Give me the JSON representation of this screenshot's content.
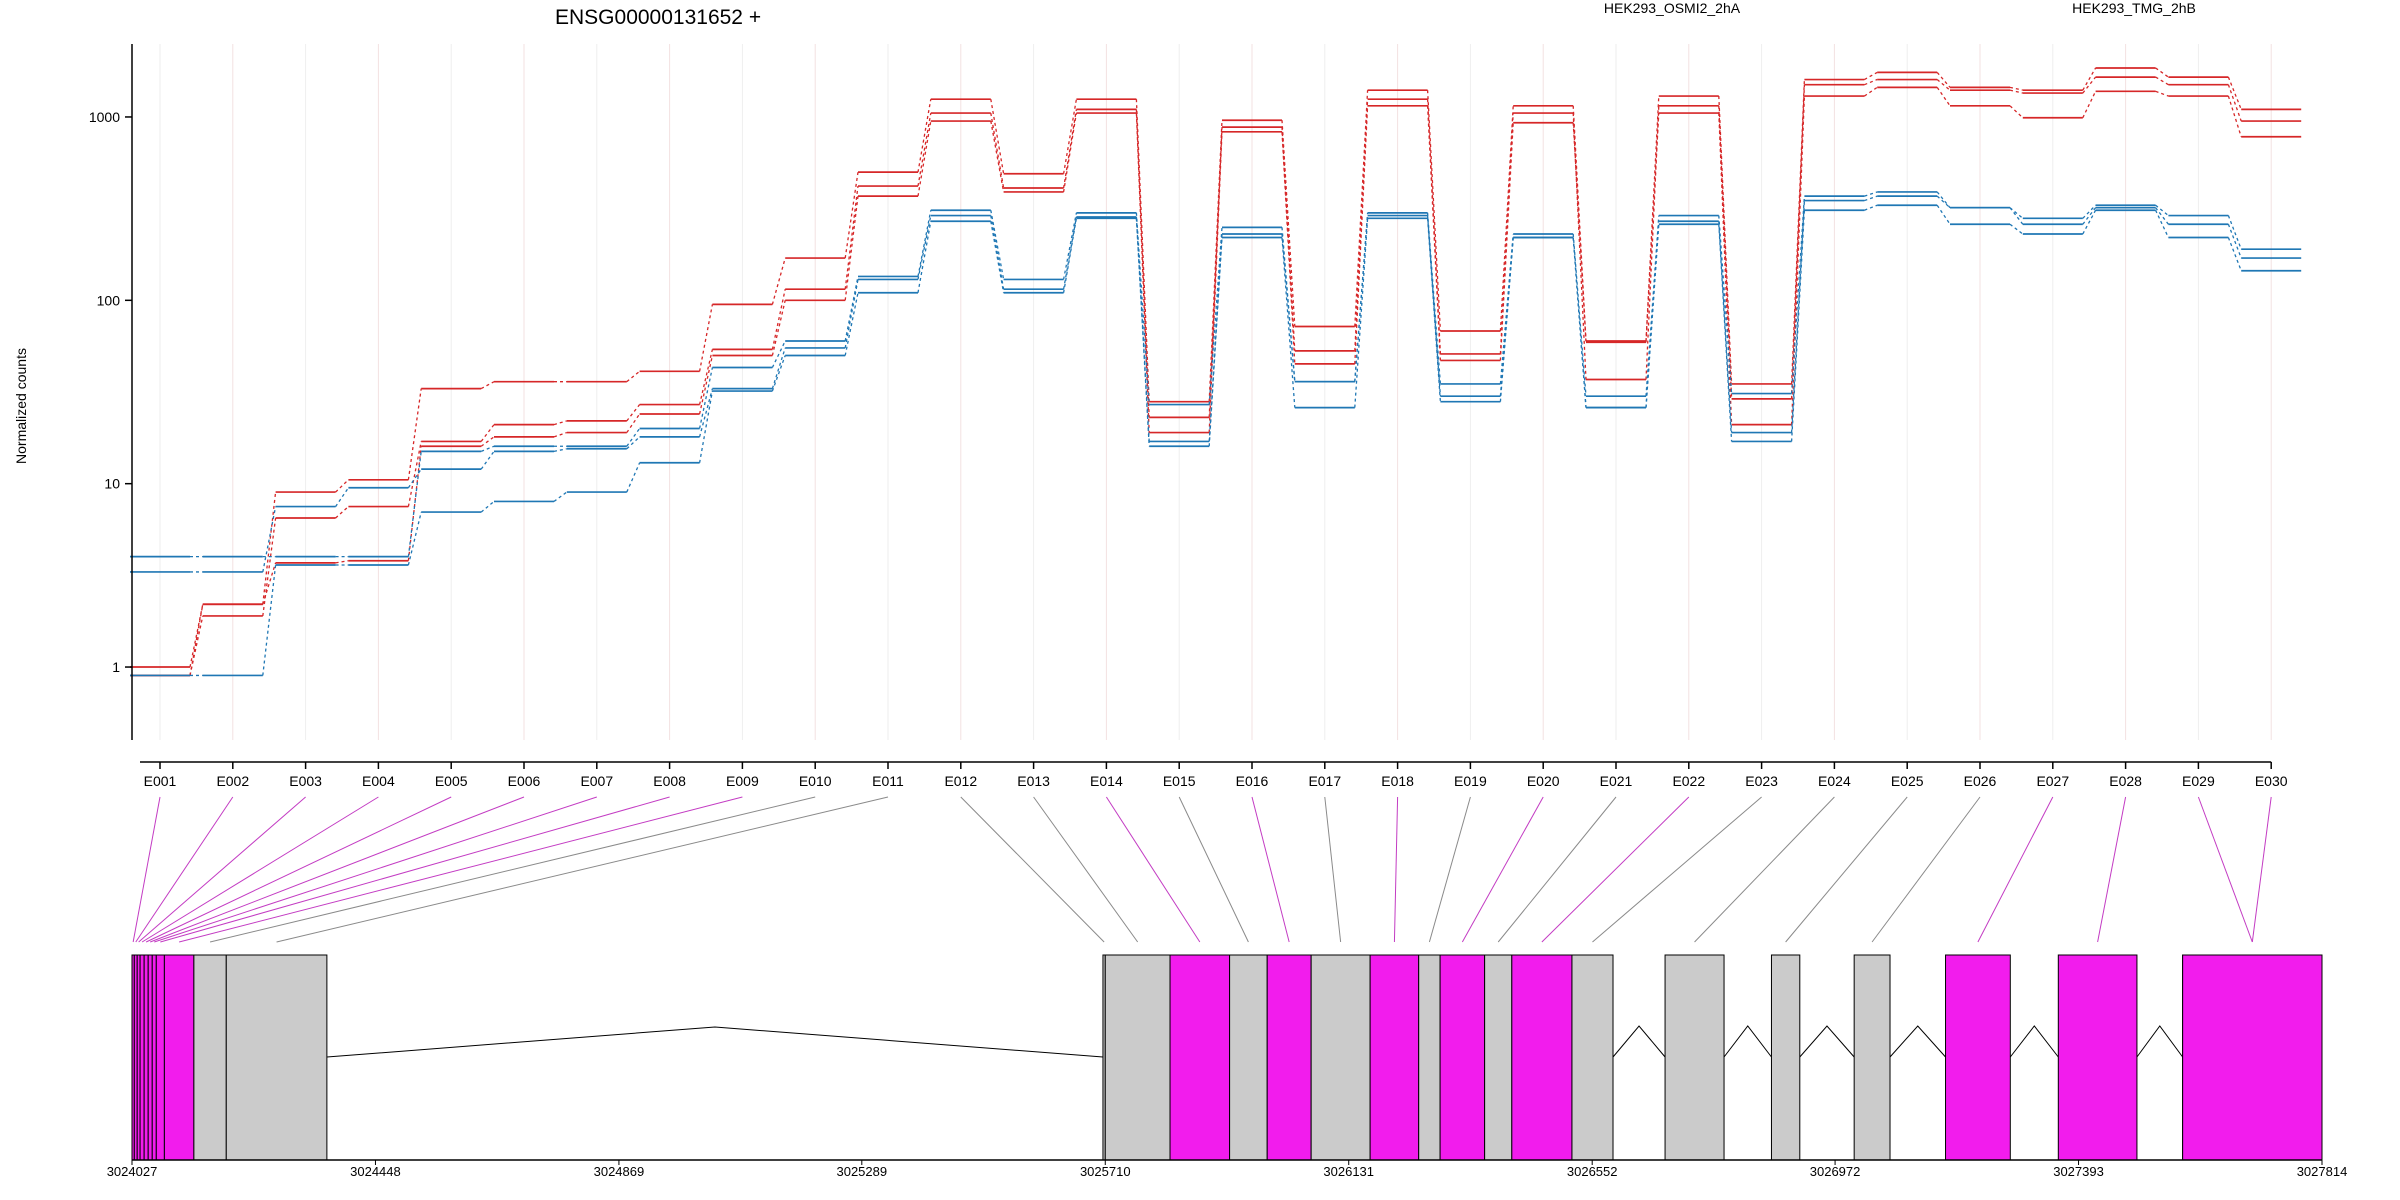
{
  "chart_data": {
    "type": "line",
    "title": "ENSG00000131652 +",
    "ylabel": "Normalized counts",
    "yscale": "log",
    "ylim": [
      0.4,
      2500
    ],
    "yticks": [
      "1",
      "10",
      "100",
      "1000"
    ],
    "yticks_values": [
      1,
      10,
      100,
      1000
    ],
    "grid": "vertical",
    "legend_placement": "top",
    "categories": [
      "E001",
      "E002",
      "E003",
      "E004",
      "E005",
      "E006",
      "E007",
      "E008",
      "E009",
      "E010",
      "E011",
      "E012",
      "E013",
      "E014",
      "E015",
      "E016",
      "E017",
      "E018",
      "E019",
      "E020",
      "E021",
      "E022",
      "E023",
      "E024",
      "E025",
      "E026",
      "E027",
      "E028",
      "E029",
      "E030"
    ],
    "series": [
      {
        "name": "HEK293_OSMI2_2hA",
        "group": "HEK293_OSMI2_2hA",
        "color": "#d62728",
        "values": [
          1.0,
          2.2,
          9.0,
          10.5,
          33,
          36,
          36,
          41,
          95,
          170,
          500,
          1250,
          490,
          1250,
          28,
          960,
          72,
          1400,
          68,
          1150,
          60,
          1300,
          35,
          1600,
          1750,
          1450,
          1400,
          1850,
          1650,
          1100
        ]
      },
      {
        "name": "",
        "group": "HEK293_OSMI2_2hA",
        "color": "#d62728",
        "values": [
          0.9,
          1.9,
          6.5,
          7.5,
          17,
          21,
          22,
          27,
          54,
          115,
          420,
          1050,
          410,
          1100,
          23,
          880,
          53,
          1250,
          51,
          1050,
          37,
          1150,
          29,
          1500,
          1600,
          1400,
          1350,
          1650,
          1500,
          950
        ]
      },
      {
        "name": "",
        "group": "HEK293_OSMI2_2hA",
        "color": "#d62728",
        "values": [
          0.9,
          2.2,
          3.7,
          3.8,
          16,
          18,
          19,
          24,
          50,
          100,
          370,
          950,
          390,
          1050,
          19,
          830,
          45,
          1150,
          47,
          930,
          59,
          1050,
          21,
          1300,
          1450,
          1150,
          990,
          1380,
          1300,
          780
        ]
      },
      {
        "name": "HEK293_TMG_2hB",
        "group": "HEK293_TMG_2hB",
        "color": "#1f77b4",
        "values": [
          4.0,
          4.0,
          4.0,
          4.0,
          15,
          16,
          16,
          20,
          43,
          60,
          135,
          310,
          130,
          300,
          27,
          250,
          36,
          300,
          35,
          230,
          30,
          290,
          31,
          370,
          390,
          320,
          280,
          330,
          290,
          190
        ]
      },
      {
        "name": "",
        "group": "HEK293_TMG_2hB",
        "color": "#1f77b4",
        "values": [
          3.3,
          3.3,
          7.5,
          9.5,
          12,
          15,
          15.5,
          18,
          33,
          55,
          130,
          290,
          115,
          285,
          17,
          230,
          36,
          290,
          30,
          220,
          26,
          270,
          19,
          350,
          370,
          320,
          260,
          320,
          260,
          170
        ]
      },
      {
        "name": "",
        "group": "HEK293_TMG_2hB",
        "color": "#1f77b4",
        "values": [
          0.9,
          0.9,
          3.6,
          3.6,
          7.0,
          8.0,
          9.0,
          13,
          32,
          50,
          110,
          270,
          110,
          280,
          16,
          220,
          26,
          280,
          28,
          220,
          26,
          260,
          17,
          310,
          330,
          260,
          230,
          310,
          220,
          145
        ]
      }
    ],
    "gene_model": {
      "genomic_ticks": [
        "3024027",
        "3024448",
        "3024869",
        "3025289",
        "3025710",
        "3026131",
        "3026552",
        "3026972",
        "3027393",
        "3027814"
      ],
      "genomic_tick_values": [
        3024027,
        3024448,
        3024869,
        3025289,
        3025710,
        3026131,
        3026552,
        3026972,
        3027393,
        3027814
      ],
      "range": [
        3024027,
        3027814
      ],
      "highlight_color": "#f21ced",
      "exon_color": "#cbcbcb",
      "exons": [
        {
          "id": "E001",
          "start": 3024027,
          "end": 3024031,
          "highlight": true
        },
        {
          "id": "E002",
          "start": 3024031,
          "end": 3024036,
          "highlight": true
        },
        {
          "id": "E003",
          "start": 3024036,
          "end": 3024041,
          "highlight": true
        },
        {
          "id": "E004",
          "start": 3024041,
          "end": 3024048,
          "highlight": true
        },
        {
          "id": "E005",
          "start": 3024048,
          "end": 3024055,
          "highlight": true
        },
        {
          "id": "E006",
          "start": 3024055,
          "end": 3024062,
          "highlight": true
        },
        {
          "id": "E007",
          "start": 3024062,
          "end": 3024069,
          "highlight": true
        },
        {
          "id": "E008",
          "start": 3024069,
          "end": 3024083,
          "highlight": true
        },
        {
          "id": "E009",
          "start": 3024083,
          "end": 3024134,
          "highlight": true
        },
        {
          "id": "E010",
          "start": 3024134,
          "end": 3024190,
          "highlight": false
        },
        {
          "id": "E011",
          "start": 3024190,
          "end": 3024364,
          "highlight": false
        },
        {
          "id": "E012",
          "start": 3025706,
          "end": 3025710,
          "highlight": false
        },
        {
          "id": "E013",
          "start": 3025710,
          "end": 3025822,
          "highlight": false
        },
        {
          "id": "E014",
          "start": 3025822,
          "end": 3025925,
          "highlight": true
        },
        {
          "id": "E015",
          "start": 3025925,
          "end": 3025990,
          "highlight": false
        },
        {
          "id": "E016",
          "start": 3025990,
          "end": 3026066,
          "highlight": true
        },
        {
          "id": "E017",
          "start": 3026066,
          "end": 3026168,
          "highlight": false
        },
        {
          "id": "E018",
          "start": 3026168,
          "end": 3026252,
          "highlight": true
        },
        {
          "id": "E019",
          "start": 3026252,
          "end": 3026289,
          "highlight": false
        },
        {
          "id": "E020",
          "start": 3026289,
          "end": 3026366,
          "highlight": true
        },
        {
          "id": "E021",
          "start": 3026366,
          "end": 3026413,
          "highlight": false
        },
        {
          "id": "E022",
          "start": 3026413,
          "end": 3026517,
          "highlight": true
        },
        {
          "id": "E023",
          "start": 3026517,
          "end": 3026588,
          "highlight": false
        },
        {
          "id": "E024",
          "start": 3026678,
          "end": 3026780,
          "highlight": false
        },
        {
          "id": "E025",
          "start": 3026862,
          "end": 3026911,
          "highlight": false
        },
        {
          "id": "E026",
          "start": 3027005,
          "end": 3027067,
          "highlight": false
        },
        {
          "id": "E027",
          "start": 3027163,
          "end": 3027275,
          "highlight": true
        },
        {
          "id": "E028",
          "start": 3027358,
          "end": 3027494,
          "highlight": true
        },
        {
          "id": "E029",
          "start": 3027573,
          "end": 3027814,
          "highlight": true
        },
        {
          "id": "E030",
          "start": 3027573,
          "end": 3027814,
          "highlight": true
        }
      ],
      "introns": [
        [
          3024364,
          3025706
        ],
        [
          3026588,
          3026678
        ],
        [
          3026780,
          3026862
        ],
        [
          3026911,
          3027005
        ],
        [
          3027067,
          3027163
        ],
        [
          3027275,
          3027358
        ],
        [
          3027494,
          3027573
        ]
      ]
    }
  }
}
